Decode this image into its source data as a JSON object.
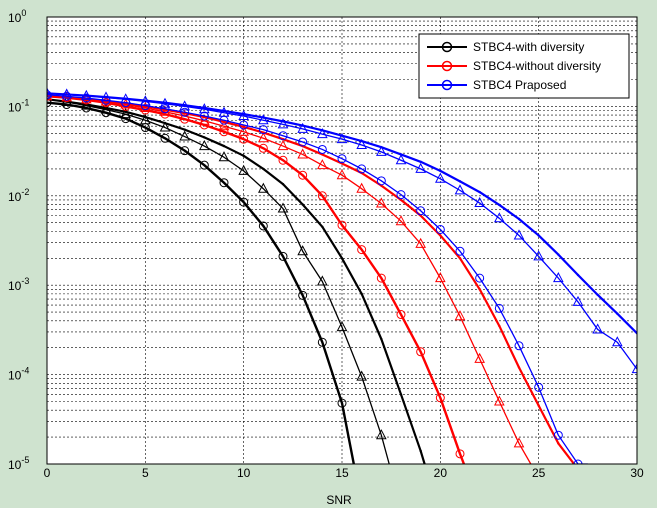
{
  "figure": {
    "background": "#cfe3cf"
  },
  "chart_data": {
    "type": "line",
    "title": "",
    "xlabel": "SNR",
    "ylabel": "",
    "xlim": [
      0,
      30
    ],
    "ylim": [
      1e-05,
      1
    ],
    "yscale": "log",
    "grid": "y-major-and-minor, x-major",
    "legend_position": "top-right",
    "x_ticks": [
      "0",
      "5",
      "10",
      "15",
      "20",
      "25",
      "30"
    ],
    "y_ticks": [
      {
        "base": "10",
        "exp": "0",
        "value": 1
      },
      {
        "base": "10",
        "exp": "-1",
        "value": 0.1
      },
      {
        "base": "10",
        "exp": "-2",
        "value": 0.01
      },
      {
        "base": "10",
        "exp": "-3",
        "value": 0.001
      },
      {
        "base": "10",
        "exp": "-4",
        "value": 0.0001
      },
      {
        "base": "10",
        "exp": "-5",
        "value": 1e-05
      }
    ],
    "legend": [
      {
        "label": "STBC4-with diversity",
        "color": "#000000",
        "marker": "circle"
      },
      {
        "label": "STBC4-without diversity",
        "color": "#ff0000",
        "marker": "circle"
      },
      {
        "label": "STBC4 Praposed",
        "color": "#0000ff",
        "marker": "circle"
      }
    ],
    "series": [
      {
        "color": "#000000",
        "marker": "circle",
        "lw": 2.4,
        "x": [
          0,
          1,
          2,
          3,
          4,
          5,
          6,
          7,
          8,
          9,
          10,
          11,
          12,
          13,
          14,
          15,
          15.6
        ],
        "y": [
          0.11,
          0.105,
          0.096,
          0.085,
          0.073,
          0.058,
          0.044,
          0.032,
          0.022,
          0.014,
          0.0085,
          0.0046,
          0.0021,
          0.00077,
          0.00023,
          4.8e-05,
          1e-05
        ]
      },
      {
        "color": "#000000",
        "marker": "triangle",
        "lw": 1.3,
        "x": [
          0,
          1,
          2,
          3,
          4,
          5,
          6,
          7,
          8,
          9,
          10,
          11,
          12,
          13,
          14,
          15,
          16,
          17,
          17.4
        ],
        "y": [
          0.12,
          0.112,
          0.102,
          0.092,
          0.082,
          0.07,
          0.058,
          0.046,
          0.036,
          0.027,
          0.019,
          0.012,
          0.0072,
          0.0024,
          0.0011,
          0.00034,
          9.5e-05,
          2.1e-05,
          1e-05
        ]
      },
      {
        "color": "#000000",
        "marker": "dot",
        "lw": 2.2,
        "x": [
          0,
          1,
          2,
          3,
          4,
          5,
          6,
          7,
          8,
          9,
          10,
          11,
          12,
          13,
          14,
          15,
          16,
          17,
          18,
          19,
          19.2
        ],
        "y": [
          0.12,
          0.113,
          0.105,
          0.096,
          0.087,
          0.076,
          0.065,
          0.055,
          0.045,
          0.036,
          0.028,
          0.02,
          0.0135,
          0.008,
          0.0045,
          0.002,
          0.0008,
          0.00025,
          6e-05,
          1.4e-05,
          1e-05
        ]
      },
      {
        "color": "#ff0000",
        "marker": "circle",
        "lw": 2.4,
        "x": [
          0,
          1,
          2,
          3,
          4,
          5,
          6,
          7,
          8,
          9,
          10,
          11,
          12,
          13,
          14,
          15,
          16,
          17,
          18,
          19,
          20,
          21,
          21.2
        ],
        "y": [
          0.13,
          0.125,
          0.118,
          0.11,
          0.1,
          0.091,
          0.082,
          0.072,
          0.062,
          0.052,
          0.043,
          0.034,
          0.025,
          0.017,
          0.01,
          0.0047,
          0.0025,
          0.0012,
          0.00047,
          0.00018,
          5.5e-05,
          1.3e-05,
          1e-05
        ]
      },
      {
        "color": "#ff0000",
        "marker": "triangle",
        "lw": 1.3,
        "x": [
          0,
          1,
          2,
          3,
          4,
          5,
          6,
          7,
          8,
          9,
          10,
          11,
          12,
          13,
          14,
          15,
          16,
          17,
          18,
          19,
          20,
          21,
          22,
          23,
          24,
          24.6
        ],
        "y": [
          0.13,
          0.126,
          0.12,
          0.113,
          0.105,
          0.096,
          0.087,
          0.078,
          0.069,
          0.06,
          0.052,
          0.044,
          0.036,
          0.029,
          0.022,
          0.017,
          0.012,
          0.0082,
          0.0052,
          0.0029,
          0.0012,
          0.00045,
          0.00015,
          5e-05,
          1.7e-05,
          1e-05
        ]
      },
      {
        "color": "#ff0000",
        "marker": "dot",
        "lw": 2.2,
        "x": [
          0,
          1,
          2,
          3,
          4,
          5,
          6,
          7,
          8,
          9,
          10,
          11,
          12,
          13,
          14,
          15,
          16,
          17,
          18,
          19,
          20,
          21,
          22,
          23,
          24,
          25,
          26,
          26.8
        ],
        "y": [
          0.13,
          0.126,
          0.121,
          0.115,
          0.108,
          0.1,
          0.092,
          0.084,
          0.076,
          0.067,
          0.059,
          0.051,
          0.043,
          0.036,
          0.029,
          0.023,
          0.018,
          0.013,
          0.009,
          0.006,
          0.0036,
          0.002,
          0.0009,
          0.00035,
          0.00012,
          4.5e-05,
          1.7e-05,
          1e-05
        ]
      },
      {
        "color": "#0000ff",
        "marker": "circle",
        "lw": 1.3,
        "x": [
          0,
          1,
          2,
          3,
          4,
          5,
          6,
          7,
          8,
          9,
          10,
          11,
          12,
          13,
          14,
          15,
          16,
          17,
          18,
          19,
          20,
          21,
          22,
          23,
          24,
          25,
          26,
          27,
          27.5
        ],
        "y": [
          0.135,
          0.13,
          0.124,
          0.117,
          0.11,
          0.102,
          0.094,
          0.086,
          0.078,
          0.07,
          0.062,
          0.055,
          0.047,
          0.04,
          0.033,
          0.026,
          0.02,
          0.0147,
          0.0103,
          0.0068,
          0.0042,
          0.0024,
          0.0012,
          0.00055,
          0.00021,
          7.2e-05,
          2.1e-05,
          5.5e-06,
          1e-05
        ]
      },
      {
        "color": "#0000ff",
        "marker": "triangle",
        "lw": 1.3,
        "x": [
          0,
          1,
          2,
          3,
          4,
          5,
          6,
          7,
          8,
          9,
          10,
          11,
          12,
          13,
          14,
          15,
          16,
          17,
          18,
          19,
          20,
          21,
          22,
          23,
          24,
          25,
          26,
          27,
          28,
          29,
          30
        ],
        "y": [
          0.14,
          0.136,
          0.131,
          0.126,
          0.12,
          0.114,
          0.107,
          0.1,
          0.093,
          0.085,
          0.078,
          0.07,
          0.063,
          0.056,
          0.049,
          0.043,
          0.037,
          0.031,
          0.025,
          0.02,
          0.0155,
          0.0115,
          0.0083,
          0.0056,
          0.0036,
          0.0021,
          0.0012,
          0.00065,
          0.00032,
          0.00023,
          0.000115
        ]
      },
      {
        "color": "#0000ff",
        "marker": "dot",
        "lw": 2.2,
        "x": [
          0,
          1,
          2,
          3,
          4,
          5,
          6,
          7,
          8,
          9,
          10,
          11,
          12,
          13,
          14,
          15,
          16,
          17,
          18,
          19,
          20,
          21,
          22,
          23,
          24,
          25,
          26,
          27,
          28,
          29,
          30
        ],
        "y": [
          0.14,
          0.136,
          0.132,
          0.127,
          0.122,
          0.116,
          0.11,
          0.103,
          0.096,
          0.089,
          0.082,
          0.075,
          0.068,
          0.061,
          0.054,
          0.047,
          0.041,
          0.035,
          0.029,
          0.024,
          0.019,
          0.0145,
          0.011,
          0.0079,
          0.0055,
          0.0036,
          0.0022,
          0.0013,
          0.00078,
          0.00048,
          0.00029
        ]
      }
    ]
  }
}
